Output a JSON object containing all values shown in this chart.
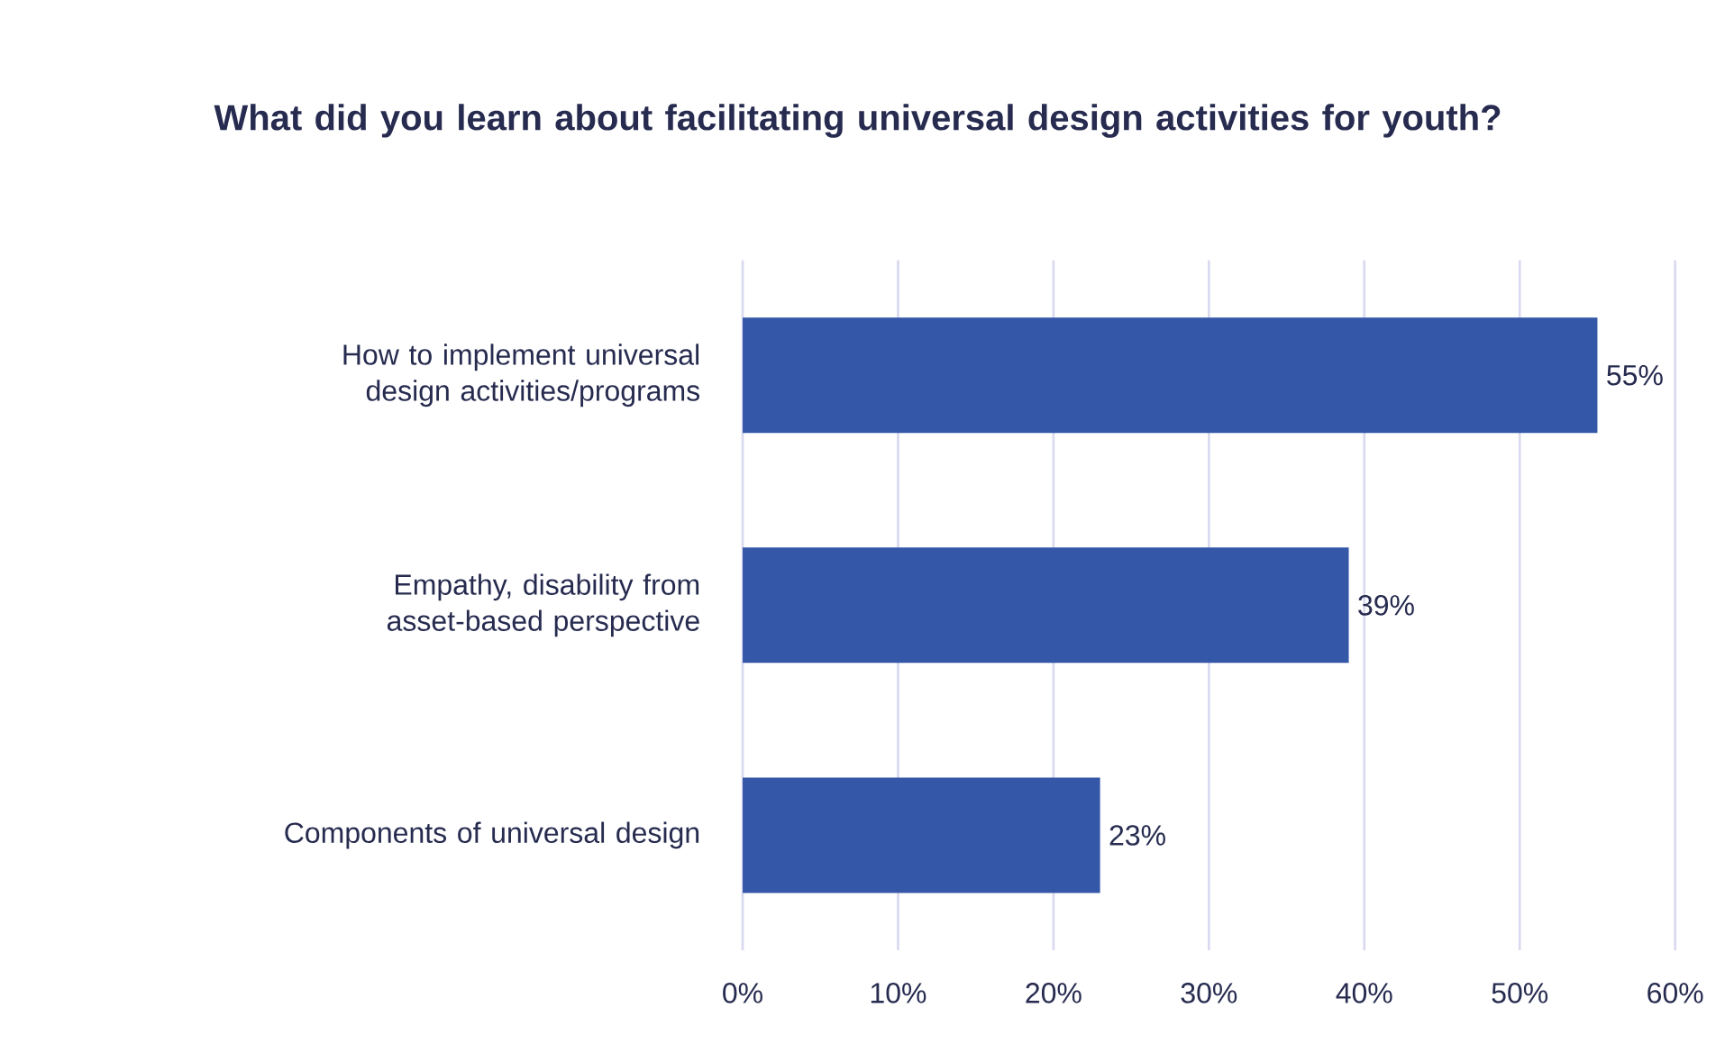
{
  "chart_data": {
    "type": "bar",
    "orientation": "horizontal",
    "title": "What did you learn about facilitating universal design activities for youth?",
    "categories": [
      "How to implement universal design activities/programs",
      "Empathy, disability from asset-based perspective",
      "Components of universal design"
    ],
    "values": [
      55,
      39,
      23
    ],
    "value_labels": [
      "55%",
      "39%",
      "23%"
    ],
    "color": "#3557a8",
    "xlim": [
      0,
      60
    ],
    "xticks": [
      {
        "value": 0,
        "label": "0%"
      },
      {
        "value": 10,
        "label": "10%"
      },
      {
        "value": 20,
        "label": "20%"
      },
      {
        "value": 30,
        "label": "30%"
      },
      {
        "value": 40,
        "label": "40%"
      },
      {
        "value": 50,
        "label": "50%"
      },
      {
        "value": 60,
        "label": "60%"
      }
    ],
    "grid": "x"
  }
}
